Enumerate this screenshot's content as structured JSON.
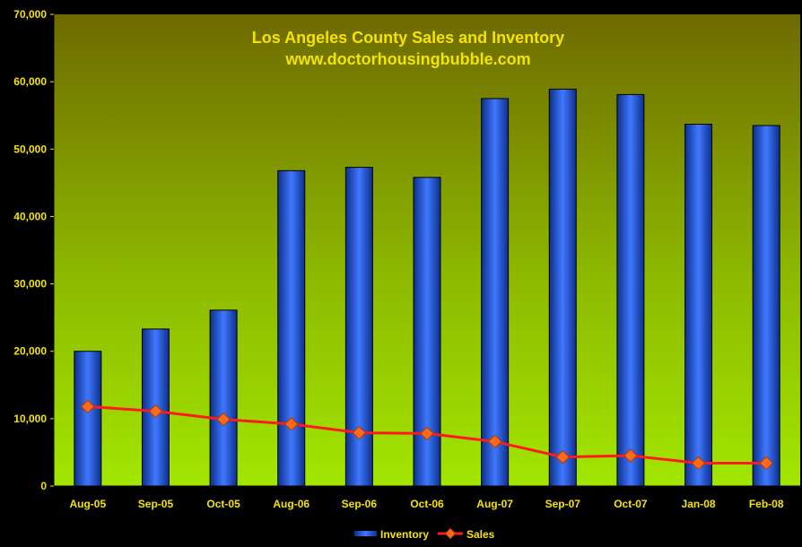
{
  "chart_data": {
    "type": "bar",
    "title": "Los Angeles County Sales and Inventory",
    "subtitle": "www.doctorhousingbubble.com",
    "xlabel": "",
    "ylabel": "",
    "ylim": [
      0,
      70000
    ],
    "yticks": [
      "0",
      "10,000",
      "20,000",
      "30,000",
      "40,000",
      "50,000",
      "60,000",
      "70,000"
    ],
    "grid": false,
    "legend_position": "bottom",
    "categories": [
      "Aug-05",
      "Sep-05",
      "Oct-05",
      "Aug-06",
      "Sep-06",
      "Oct-06",
      "Aug-07",
      "Sep-07",
      "Oct-07",
      "Jan-08",
      "Feb-08"
    ],
    "series": [
      {
        "name": "Inventory",
        "type": "bar",
        "color": "#2f5fd8",
        "values": [
          20000,
          23300,
          26100,
          46800,
          47300,
          45800,
          57500,
          58900,
          58100,
          53700,
          53500
        ]
      },
      {
        "name": "Sales",
        "type": "line",
        "color": "#ff1a1a",
        "marker_color": "#ff6a1a",
        "values": [
          11800,
          11100,
          9900,
          9200,
          7900,
          7800,
          6600,
          4300,
          4500,
          3400,
          3400
        ]
      }
    ]
  },
  "colors": {
    "page_background": "#000000",
    "plot_top": "#6e6a00",
    "plot_bottom": "#9fe000",
    "text": "#f5e400"
  }
}
